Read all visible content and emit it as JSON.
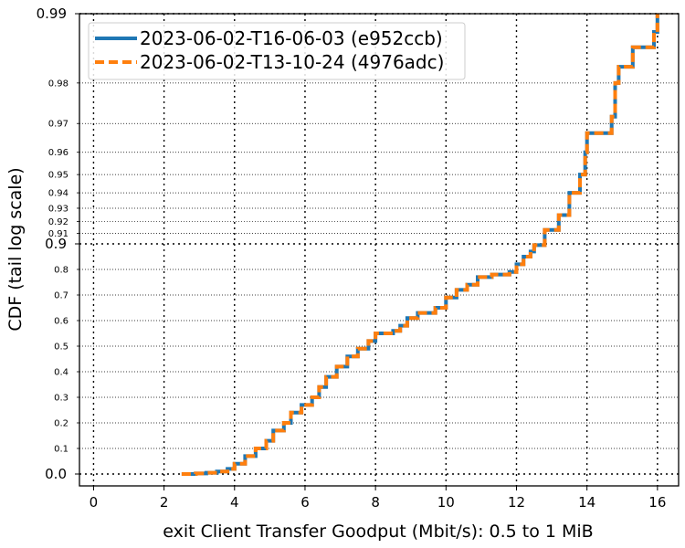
{
  "chart_data": {
    "type": "line",
    "title": "",
    "xlabel": "exit Client Transfer Goodput (Mbit/s): 0.5 to 1 MiB",
    "ylabel": "CDF (tail log scale)",
    "xlim": [
      -0.4,
      16.6
    ],
    "xticks": [
      0,
      2,
      4,
      6,
      8,
      10,
      12,
      14,
      16
    ],
    "yscale": "tail-log (linear below 0.9, log of 1-p above 0.9)",
    "yticks_major": [
      "0.0",
      "0.9",
      "0.99"
    ],
    "yticks_minor": [
      "0.1",
      "0.2",
      "0.3",
      "0.4",
      "0.5",
      "0.6",
      "0.7",
      "0.8",
      "0.91",
      "0.92",
      "0.93",
      "0.94",
      "0.95",
      "0.96",
      "0.97",
      "0.98"
    ],
    "grid": true,
    "legend_position": "top-left",
    "series": [
      {
        "name": "2023-06-02-T16-06-03 (e952ccb)",
        "color": "#1f77b4",
        "style": "solid",
        "points": [
          [
            2.5,
            0.0
          ],
          [
            2.9,
            0.002
          ],
          [
            3.2,
            0.005
          ],
          [
            3.5,
            0.01
          ],
          [
            3.8,
            0.02
          ],
          [
            4.0,
            0.04
          ],
          [
            4.3,
            0.07
          ],
          [
            4.6,
            0.1
          ],
          [
            4.9,
            0.13
          ],
          [
            5.1,
            0.17
          ],
          [
            5.4,
            0.2
          ],
          [
            5.6,
            0.24
          ],
          [
            5.9,
            0.27
          ],
          [
            6.2,
            0.3
          ],
          [
            6.4,
            0.34
          ],
          [
            6.6,
            0.38
          ],
          [
            6.9,
            0.42
          ],
          [
            7.2,
            0.46
          ],
          [
            7.5,
            0.49
          ],
          [
            7.8,
            0.52
          ],
          [
            8.0,
            0.55
          ],
          [
            8.5,
            0.56
          ],
          [
            8.7,
            0.58
          ],
          [
            8.9,
            0.61
          ],
          [
            9.2,
            0.63
          ],
          [
            9.7,
            0.65
          ],
          [
            10.0,
            0.69
          ],
          [
            10.3,
            0.72
          ],
          [
            10.6,
            0.74
          ],
          [
            10.9,
            0.77
          ],
          [
            11.3,
            0.78
          ],
          [
            11.8,
            0.79
          ],
          [
            12.0,
            0.82
          ],
          [
            12.2,
            0.85
          ],
          [
            12.4,
            0.87
          ],
          [
            12.5,
            0.895
          ],
          [
            12.8,
            0.913
          ],
          [
            13.2,
            0.925
          ],
          [
            13.5,
            0.94
          ],
          [
            13.8,
            0.95
          ],
          [
            13.95,
            0.96
          ],
          [
            14.0,
            0.967
          ],
          [
            14.7,
            0.972
          ],
          [
            14.8,
            0.98
          ],
          [
            14.9,
            0.983
          ],
          [
            15.3,
            0.986
          ],
          [
            15.9,
            0.988
          ],
          [
            16.0,
            0.99
          ]
        ]
      },
      {
        "name": "2023-06-02-T13-10-24 (4976adc)",
        "color": "#ff7f0e",
        "style": "dashed",
        "points": [
          [
            2.5,
            0.0
          ],
          [
            2.9,
            0.002
          ],
          [
            3.2,
            0.005
          ],
          [
            3.5,
            0.01
          ],
          [
            3.8,
            0.02
          ],
          [
            4.0,
            0.04
          ],
          [
            4.3,
            0.07
          ],
          [
            4.6,
            0.1
          ],
          [
            4.9,
            0.13
          ],
          [
            5.1,
            0.17
          ],
          [
            5.4,
            0.2
          ],
          [
            5.6,
            0.24
          ],
          [
            5.9,
            0.27
          ],
          [
            6.2,
            0.3
          ],
          [
            6.4,
            0.34
          ],
          [
            6.6,
            0.38
          ],
          [
            6.9,
            0.42
          ],
          [
            7.2,
            0.46
          ],
          [
            7.5,
            0.49
          ],
          [
            7.8,
            0.52
          ],
          [
            8.0,
            0.55
          ],
          [
            8.5,
            0.56
          ],
          [
            8.7,
            0.58
          ],
          [
            8.9,
            0.61
          ],
          [
            9.2,
            0.63
          ],
          [
            9.7,
            0.65
          ],
          [
            10.0,
            0.69
          ],
          [
            10.3,
            0.72
          ],
          [
            10.6,
            0.74
          ],
          [
            10.9,
            0.77
          ],
          [
            11.3,
            0.78
          ],
          [
            11.8,
            0.79
          ],
          [
            12.0,
            0.82
          ],
          [
            12.2,
            0.85
          ],
          [
            12.4,
            0.87
          ],
          [
            12.5,
            0.895
          ],
          [
            12.8,
            0.913
          ],
          [
            13.2,
            0.925
          ],
          [
            13.5,
            0.94
          ],
          [
            13.8,
            0.95
          ],
          [
            13.95,
            0.96
          ],
          [
            14.0,
            0.967
          ],
          [
            14.7,
            0.972
          ],
          [
            14.8,
            0.98
          ],
          [
            14.9,
            0.983
          ],
          [
            15.3,
            0.986
          ],
          [
            15.9,
            0.988
          ],
          [
            16.0,
            0.99
          ]
        ]
      }
    ]
  }
}
